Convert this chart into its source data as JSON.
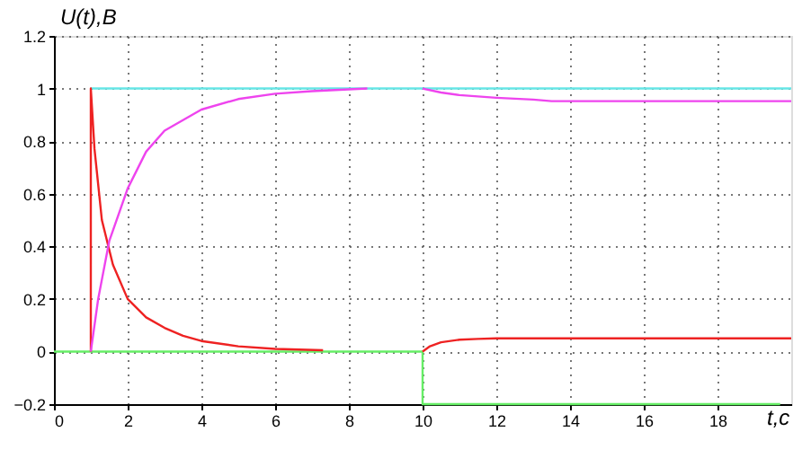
{
  "chart_data": {
    "type": "line",
    "xlabel": "t,c",
    "ylabel": "U(t),B",
    "xlim": [
      0,
      20
    ],
    "xticks": [
      0,
      2,
      4,
      6,
      8,
      10,
      12,
      14,
      16,
      18
    ],
    "ylim": [
      -0.2,
      1.2
    ],
    "yticks": [
      -0.2,
      0,
      0.2,
      0.4,
      0.6,
      0.8,
      1,
      1.2
    ],
    "grid": true,
    "legend": false,
    "marker": "none",
    "line_style": "solid",
    "series": [
      {
        "color": "#66e6e6",
        "x": [
          1,
          20
        ],
        "values": [
          1,
          1
        ]
      },
      {
        "color": "#66ee66",
        "x": [
          0,
          10,
          10,
          19.7
        ],
        "values": [
          0,
          0,
          -0.2,
          -0.2
        ]
      },
      {
        "color": "#ee2222",
        "x": [
          1,
          1,
          1.1,
          1.3,
          1.6,
          2,
          2.5,
          3,
          3.5,
          4,
          5,
          6,
          7.3,
          8,
          10,
          10.2,
          10.5,
          11,
          11.5,
          12,
          13,
          20
        ],
        "values": [
          0,
          1,
          0.77,
          0.5,
          0.33,
          0.2,
          0.13,
          0.09,
          0.06,
          0.04,
          0.02,
          0.01,
          0.005,
          null,
          0,
          0.02,
          0.035,
          0.045,
          0.048,
          0.05,
          0.05,
          0.05
        ]
      },
      {
        "color": "#ee44ee",
        "x": [
          1,
          1.2,
          1.5,
          2,
          2.5,
          3,
          4,
          5,
          6,
          7,
          8.5,
          9,
          10,
          10.5,
          11,
          12,
          13,
          13.5,
          20
        ],
        "values": [
          0,
          0.2,
          0.42,
          0.62,
          0.76,
          0.84,
          0.92,
          0.96,
          0.98,
          0.99,
          1,
          null,
          1,
          0.985,
          0.975,
          0.965,
          0.958,
          0.952,
          0.952
        ]
      }
    ]
  }
}
